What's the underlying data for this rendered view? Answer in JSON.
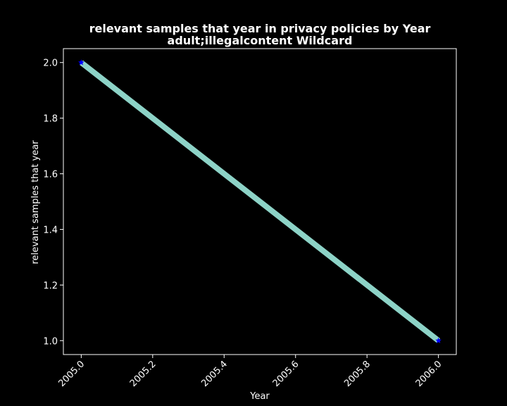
{
  "chart_data": {
    "type": "line",
    "title_line1": "relevant samples that year in privacy policies by Year",
    "title_line2": "adult;illegalcontent Wildcard",
    "xlabel": "Year",
    "ylabel": "relevant samples that year",
    "xlim": [
      2004.95,
      2006.05
    ],
    "ylim": [
      0.95,
      2.05
    ],
    "xticks": [
      "2005.0",
      "2005.2",
      "2005.4",
      "2005.6",
      "2005.8",
      "2006.0"
    ],
    "yticks": [
      "1.0",
      "1.2",
      "1.4",
      "1.6",
      "1.8",
      "2.0"
    ],
    "grid": false,
    "colors": {
      "background": "#000000",
      "line": "#8dd3c7",
      "marker": "#0000ff",
      "axes": "#ffffff"
    },
    "series": [
      {
        "x": [
          2005,
          2006
        ],
        "y": [
          2,
          1
        ]
      }
    ]
  }
}
